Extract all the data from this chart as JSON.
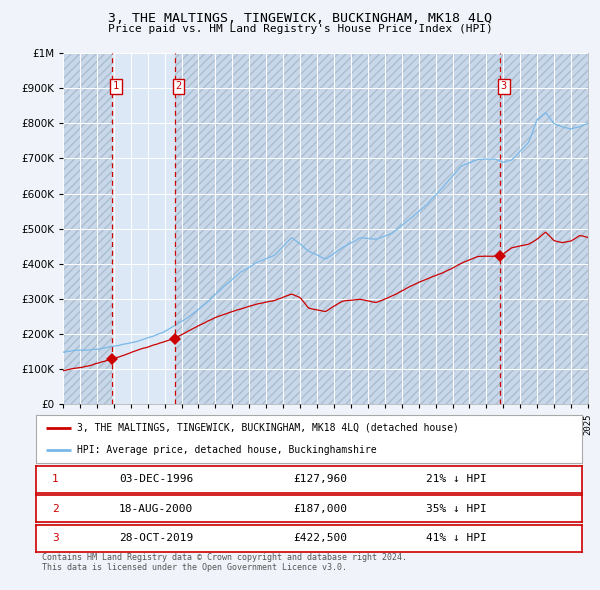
{
  "title": "3, THE MALTINGS, TINGEWICK, BUCKINGHAM, MK18 4LQ",
  "subtitle": "Price paid vs. HM Land Registry's House Price Index (HPI)",
  "bg_color": "#f0f4fa",
  "plot_bg": "#dce8f5",
  "grid_color": "#ffffff",
  "ylim": [
    0,
    1000000
  ],
  "year_start": 1994,
  "year_end": 2025,
  "sale_dates_decimal": [
    1996.917,
    2000.625,
    2019.833
  ],
  "sale_prices": [
    127960,
    187000,
    422500
  ],
  "sale_labels": [
    "1",
    "2",
    "3"
  ],
  "hpi_anchors_t": [
    1994.0,
    1995.0,
    1996.0,
    1997.0,
    1998.5,
    2000.0,
    2001.5,
    2002.5,
    2003.5,
    2004.5,
    2005.5,
    2006.5,
    2007.5,
    2008.5,
    2009.5,
    2010.5,
    2011.5,
    2012.5,
    2013.5,
    2014.5,
    2015.5,
    2016.5,
    2017.5,
    2018.5,
    2019.5,
    2020.0,
    2020.5,
    2021.5,
    2022.0,
    2022.5,
    2023.0,
    2023.5,
    2024.0,
    2024.5,
    2025.0
  ],
  "hpi_anchors_v": [
    148000,
    153000,
    158000,
    168000,
    185000,
    210000,
    255000,
    295000,
    340000,
    380000,
    410000,
    430000,
    480000,
    440000,
    415000,
    450000,
    475000,
    470000,
    490000,
    530000,
    570000,
    625000,
    680000,
    700000,
    700000,
    690000,
    695000,
    745000,
    810000,
    830000,
    800000,
    790000,
    785000,
    790000,
    800000
  ],
  "prop_anchors_t": [
    1994.0,
    1995.5,
    1996.917,
    1998.0,
    1999.5,
    2000.625,
    2001.5,
    2002.5,
    2003.5,
    2004.5,
    2005.5,
    2006.5,
    2007.5,
    2008.0,
    2008.5,
    2009.5,
    2010.5,
    2011.5,
    2012.5,
    2013.5,
    2014.5,
    2015.5,
    2016.5,
    2017.5,
    2018.5,
    2019.833,
    2020.5,
    2021.0,
    2021.5,
    2022.0,
    2022.5,
    2023.0,
    2023.5,
    2024.0,
    2024.5,
    2025.0
  ],
  "prop_anchors_v": [
    95000,
    108000,
    127960,
    145000,
    168000,
    187000,
    210000,
    235000,
    255000,
    270000,
    285000,
    295000,
    315000,
    305000,
    275000,
    265000,
    295000,
    300000,
    290000,
    310000,
    335000,
    355000,
    375000,
    400000,
    420000,
    422500,
    445000,
    450000,
    455000,
    470000,
    490000,
    465000,
    460000,
    465000,
    480000,
    475000
  ],
  "sale_marker_color": "#cc0000",
  "hpi_line_color": "#7ab8e8",
  "price_line_color": "#cc0000",
  "legend_entries": [
    "3, THE MALTINGS, TINGEWICK, BUCKINGHAM, MK18 4LQ (detached house)",
    "HPI: Average price, detached house, Buckinghamshire"
  ],
  "table_rows": [
    {
      "num": "1",
      "date": "03-DEC-1996",
      "price": "£127,960",
      "hpi": "21% ↓ HPI"
    },
    {
      "num": "2",
      "date": "18-AUG-2000",
      "price": "£187,000",
      "hpi": "35% ↓ HPI"
    },
    {
      "num": "3",
      "date": "28-OCT-2019",
      "price": "£422,500",
      "hpi": "41% ↓ HPI"
    }
  ],
  "footer": "Contains HM Land Registry data © Crown copyright and database right 2024.\nThis data is licensed under the Open Government Licence v3.0."
}
